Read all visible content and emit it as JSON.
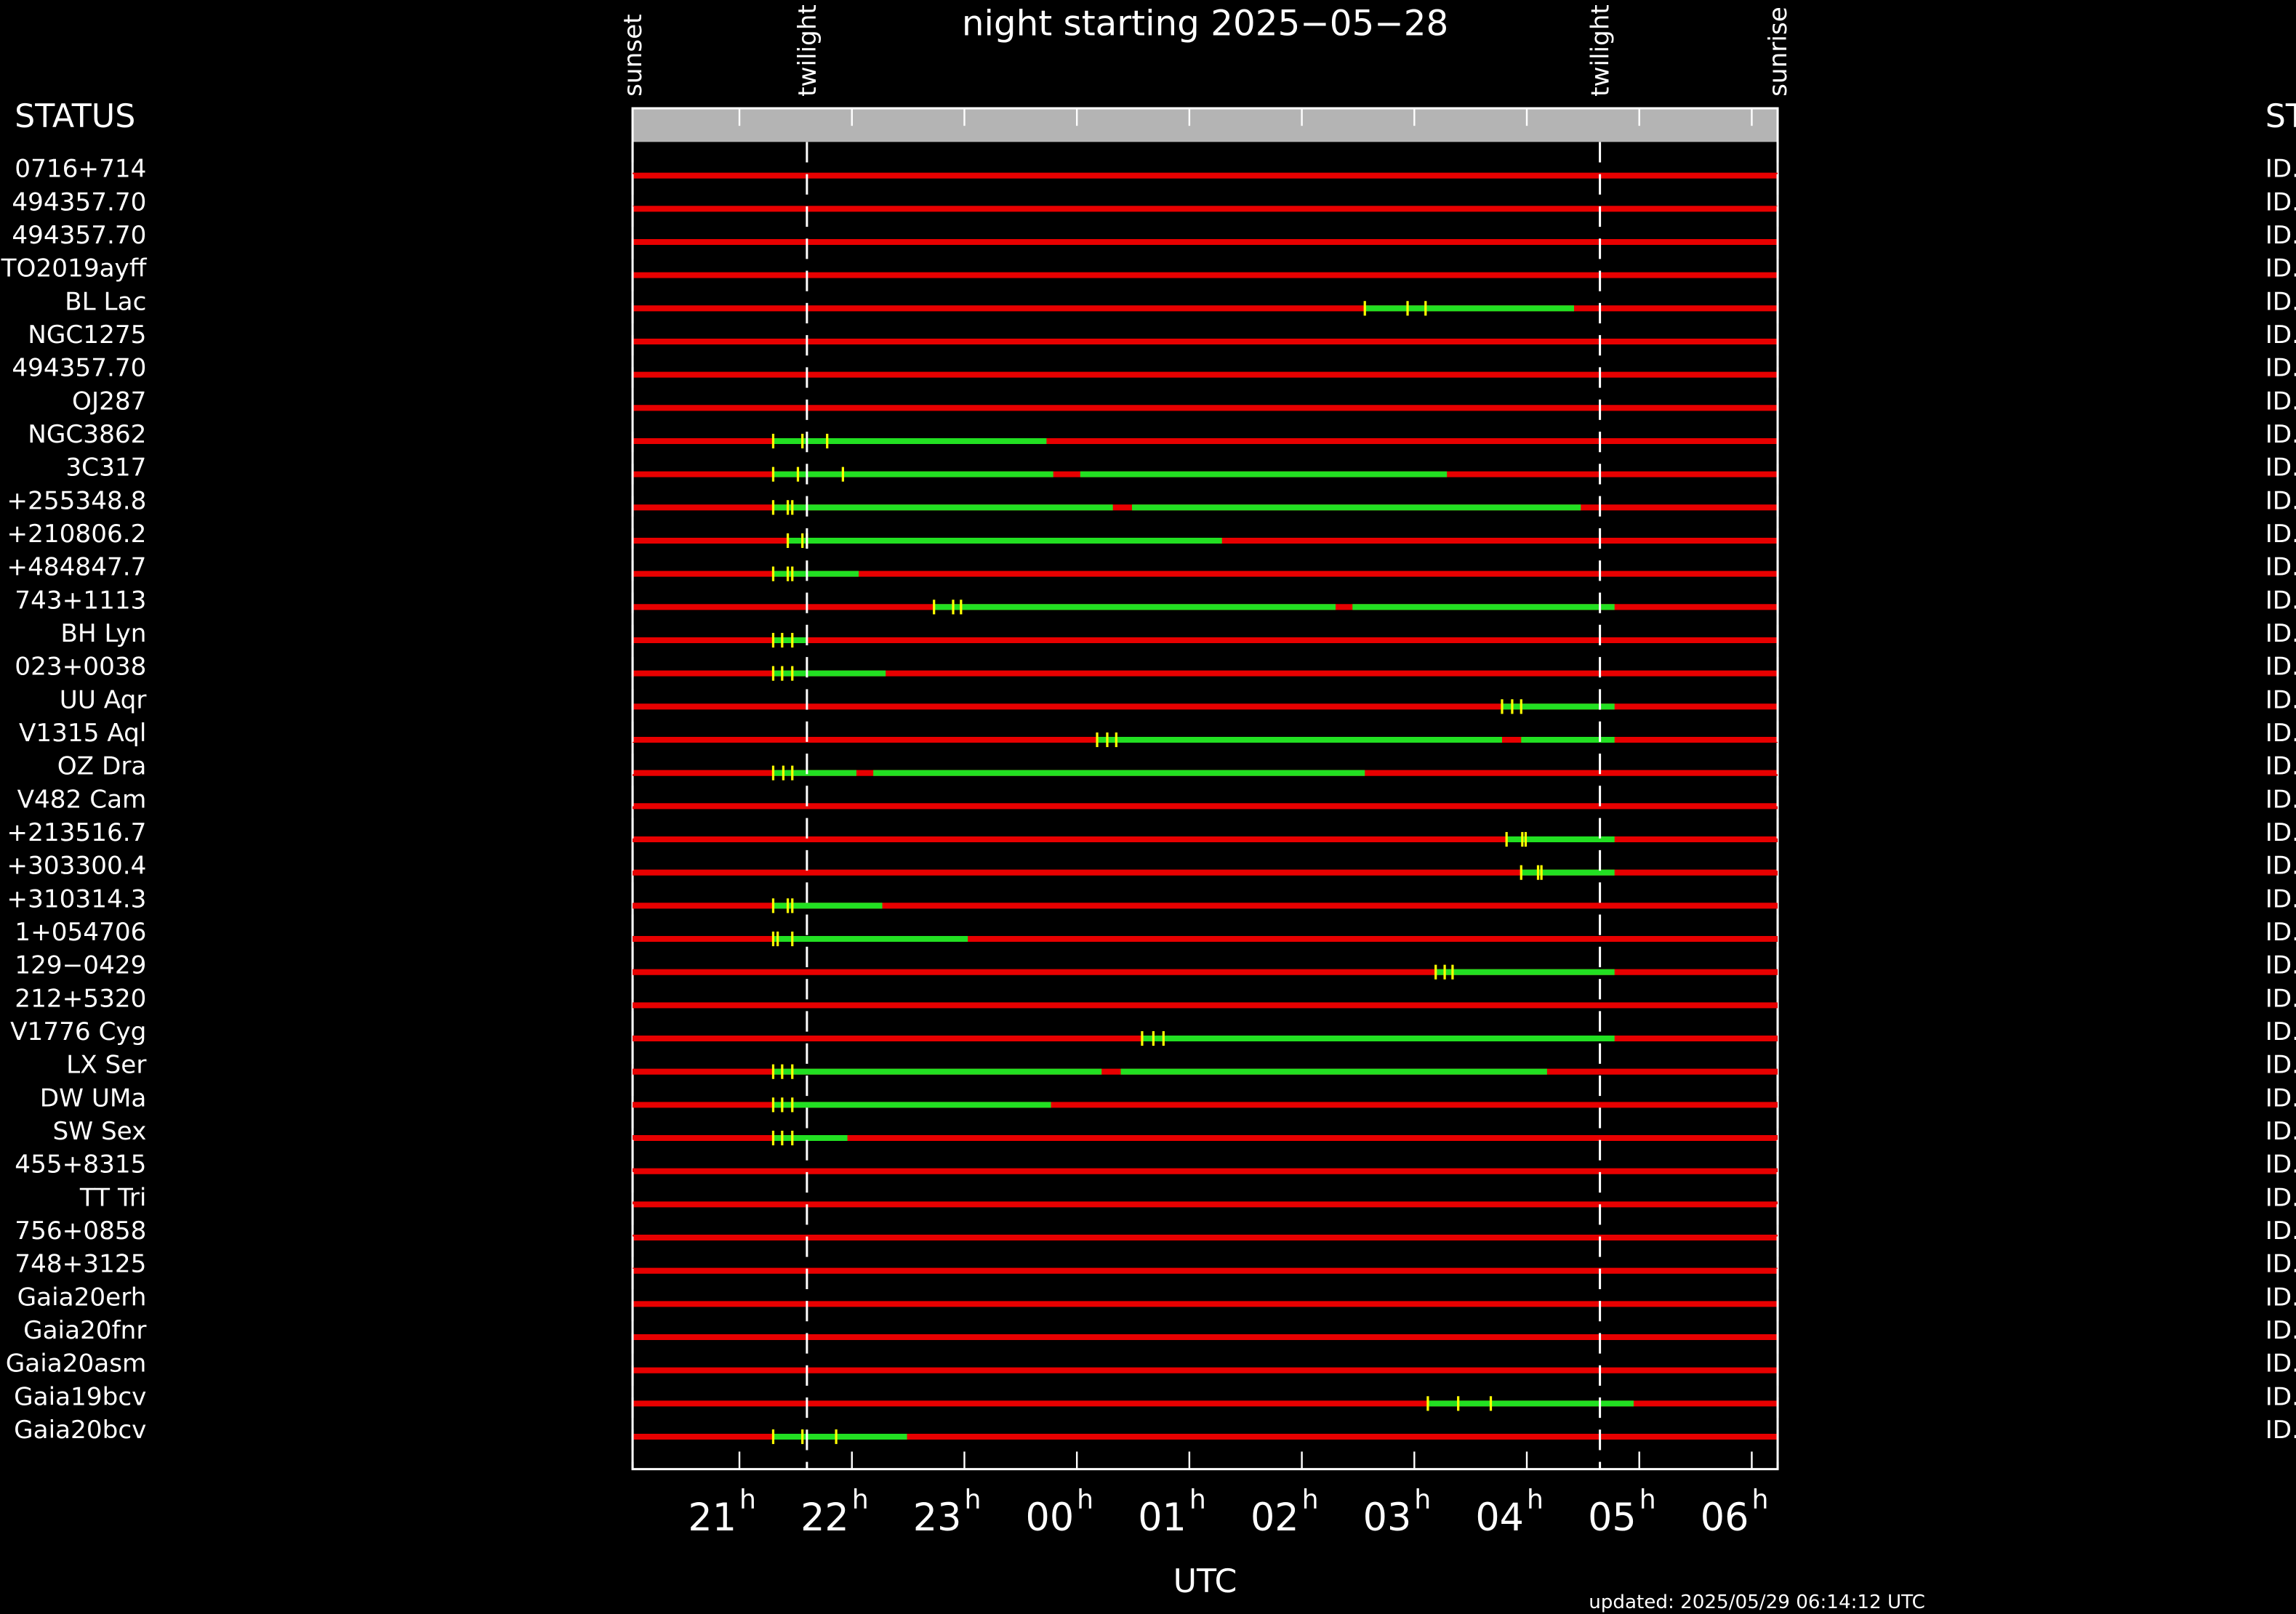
{
  "chart_data": {
    "type": "timeline",
    "title": "night starting 2025−05−28",
    "left_header": "STATUS",
    "right_header": "ST",
    "right_label": "ID.",
    "xlabel": "UTC",
    "footnote": "updated: 2025/05/29 06:14:12 UTC",
    "tick_suffix": "h",
    "xlim": [
      20.05,
      30.23
    ],
    "xticks": [
      21,
      22,
      23,
      {
        "value": 24,
        "label": "00"
      },
      {
        "value": 25,
        "label": "01"
      },
      {
        "value": 26,
        "label": "02"
      },
      {
        "value": 27,
        "label": "03"
      },
      {
        "value": 28,
        "label": "04"
      },
      {
        "value": 29,
        "label": "05"
      },
      {
        "value": 30,
        "label": "06"
      }
    ],
    "markers": [
      {
        "label": "sunset",
        "value": 20.05
      },
      {
        "label": "twilight",
        "value": 21.6
      },
      {
        "label": "twilight",
        "value": 28.65
      },
      {
        "label": "sunrise",
        "value": 30.23
      }
    ],
    "track_color": "#e80000",
    "segment_color": "#22e022",
    "tick_color": "#ffff00",
    "rows": [
      {
        "name": "0716+714",
        "segments": [],
        "ticks": []
      },
      {
        "name": "494357.70",
        "segments": [],
        "ticks": []
      },
      {
        "name": "494357.70",
        "segments": [],
        "ticks": []
      },
      {
        "name": "TO2019ayff",
        "segments": [],
        "ticks": []
      },
      {
        "name": "BL Lac",
        "segments": [
          [
            26.56,
            28.42
          ]
        ],
        "ticks": [
          26.56,
          26.94,
          27.1
        ]
      },
      {
        "name": "NGC1275",
        "segments": [],
        "ticks": []
      },
      {
        "name": "494357.70",
        "segments": [],
        "ticks": []
      },
      {
        "name": "OJ287",
        "segments": [],
        "ticks": []
      },
      {
        "name": "NGC3862",
        "segments": [
          [
            21.3,
            23.73
          ]
        ],
        "ticks": [
          21.3,
          21.56,
          21.78
        ]
      },
      {
        "name": "3C317",
        "segments": [
          [
            21.3,
            23.79
          ],
          [
            24.03,
            27.29
          ]
        ],
        "ticks": [
          21.3,
          21.52,
          21.92
        ]
      },
      {
        "name": "+255348.8",
        "segments": [
          [
            21.3,
            24.32
          ],
          [
            24.49,
            28.48
          ]
        ],
        "ticks": [
          21.3,
          21.43,
          21.47
        ]
      },
      {
        "name": "+210806.2",
        "segments": [
          [
            21.43,
            25.29
          ]
        ],
        "ticks": [
          21.43,
          21.56,
          21.6
        ]
      },
      {
        "name": "+484847.7",
        "segments": [
          [
            21.3,
            22.06
          ]
        ],
        "ticks": [
          21.3,
          21.43,
          21.47
        ]
      },
      {
        "name": "743+1113",
        "segments": [
          [
            22.73,
            26.3
          ],
          [
            26.45,
            28.78
          ]
        ],
        "ticks": [
          22.73,
          22.9,
          22.97
        ]
      },
      {
        "name": "BH Lyn",
        "segments": [
          [
            21.3,
            21.6
          ]
        ],
        "ticks": [
          21.3,
          21.38,
          21.47
        ]
      },
      {
        "name": "023+0038",
        "segments": [
          [
            21.3,
            22.3
          ]
        ],
        "ticks": [
          21.3,
          21.38,
          21.47
        ]
      },
      {
        "name": "UU Aqr",
        "segments": [
          [
            27.78,
            28.78
          ]
        ],
        "ticks": [
          27.78,
          27.87,
          27.95
        ]
      },
      {
        "name": "V1315 Aql",
        "segments": [
          [
            24.18,
            27.78
          ],
          [
            27.95,
            28.78
          ]
        ],
        "ticks": [
          24.18,
          24.27,
          24.35
        ]
      },
      {
        "name": "OZ Dra",
        "segments": [
          [
            21.3,
            22.04
          ],
          [
            22.19,
            26.56
          ]
        ],
        "ticks": [
          21.3,
          21.39,
          21.47
        ]
      },
      {
        "name": "V482 Cam",
        "segments": [],
        "ticks": []
      },
      {
        "name": "+213516.7",
        "segments": [
          [
            27.82,
            28.78
          ]
        ],
        "ticks": [
          27.82,
          27.96,
          27.99
        ]
      },
      {
        "name": "+303300.4",
        "segments": [
          [
            27.95,
            28.78
          ]
        ],
        "ticks": [
          27.95,
          28.1,
          28.13
        ]
      },
      {
        "name": "+310314.3",
        "segments": [
          [
            21.3,
            22.27
          ]
        ],
        "ticks": [
          21.3,
          21.43,
          21.47
        ]
      },
      {
        "name": "1+054706",
        "segments": [
          [
            21.3,
            23.03
          ]
        ],
        "ticks": [
          21.3,
          21.34,
          21.47
        ]
      },
      {
        "name": "129−0429",
        "segments": [
          [
            27.19,
            28.78
          ]
        ],
        "ticks": [
          27.19,
          27.27,
          27.34
        ]
      },
      {
        "name": "212+5320",
        "segments": [],
        "ticks": []
      },
      {
        "name": "V1776 Cyg",
        "segments": [
          [
            24.58,
            28.78
          ]
        ],
        "ticks": [
          24.58,
          24.68,
          24.77
        ]
      },
      {
        "name": "LX Ser",
        "segments": [
          [
            21.3,
            24.22
          ],
          [
            24.39,
            28.18
          ]
        ],
        "ticks": [
          21.3,
          21.38,
          21.47
        ]
      },
      {
        "name": "DW UMa",
        "segments": [
          [
            21.3,
            23.77
          ]
        ],
        "ticks": [
          21.3,
          21.38,
          21.47
        ]
      },
      {
        "name": "SW Sex",
        "segments": [
          [
            21.3,
            21.96
          ]
        ],
        "ticks": [
          21.3,
          21.38,
          21.47
        ]
      },
      {
        "name": "455+8315",
        "segments": [],
        "ticks": []
      },
      {
        "name": "TT Tri",
        "segments": [],
        "ticks": []
      },
      {
        "name": "756+0858",
        "segments": [],
        "ticks": []
      },
      {
        "name": "748+3125",
        "segments": [],
        "ticks": []
      },
      {
        "name": "Gaia20erh",
        "segments": [],
        "ticks": []
      },
      {
        "name": "Gaia20fnr",
        "segments": [],
        "ticks": []
      },
      {
        "name": "Gaia20asm",
        "segments": [],
        "ticks": []
      },
      {
        "name": "Gaia19bcv",
        "segments": [
          [
            27.12,
            28.95
          ]
        ],
        "ticks": [
          27.12,
          27.39,
          27.68
        ]
      },
      {
        "name": "Gaia20bcv",
        "segments": [
          [
            21.3,
            22.49
          ]
        ],
        "ticks": [
          21.3,
          21.56,
          21.86
        ]
      }
    ]
  }
}
